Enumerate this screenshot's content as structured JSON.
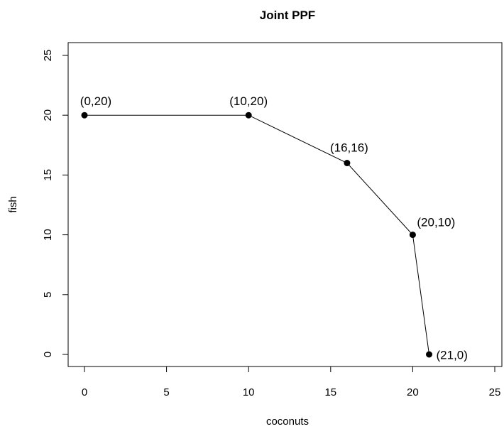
{
  "chart_data": {
    "type": "line",
    "title": "Joint PPF",
    "xlabel": "coconuts",
    "ylabel": "fish",
    "xlim": [
      0,
      25
    ],
    "ylim": [
      0,
      25
    ],
    "xticks": [
      0,
      5,
      10,
      15,
      20,
      25
    ],
    "yticks": [
      0,
      5,
      10,
      15,
      20,
      25
    ],
    "xtick_labels": [
      "0",
      "5",
      "10",
      "15",
      "20",
      "25"
    ],
    "ytick_labels": [
      "0",
      "5",
      "10",
      "15",
      "20",
      "25"
    ],
    "grid": false,
    "series": [
      {
        "x": [
          0,
          10,
          16,
          20,
          21
        ],
        "y": [
          20,
          20,
          16,
          10,
          0
        ],
        "point_labels": [
          "(0,20)",
          "(10,20)",
          "(16,16)",
          "(20,10)",
          "(21,0)"
        ]
      }
    ],
    "colors": {
      "line": "#000000",
      "points": "#000000"
    }
  }
}
